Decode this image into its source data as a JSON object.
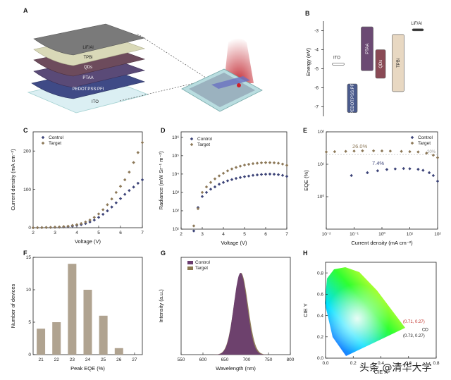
{
  "panels": {
    "a": {
      "label": "A",
      "layers": [
        "LiF/Al",
        "TPBi",
        "QDs",
        "PTAA",
        "PEDOT:PSS:PFI",
        "ITO"
      ]
    },
    "b": {
      "label": "B",
      "ylabel": "Energy (eV)",
      "yticks": [
        "-3",
        "-4",
        "-5",
        "-6",
        "-7"
      ],
      "materials": [
        {
          "name": "ITO",
          "top": -4.7,
          "bottom": -4.7,
          "color": "#ffffff"
        },
        {
          "name": "PEDOT:PSS:PFI",
          "top": -5.8,
          "bottom": -7.3,
          "color": "#4a5a8c"
        },
        {
          "name": "PTAA",
          "top": -2.8,
          "bottom": -5.1,
          "color": "#6b4a73"
        },
        {
          "name": "QDs",
          "top": -4.0,
          "bottom": -5.5,
          "color": "#8a4a55"
        },
        {
          "name": "TPBi",
          "top": -3.2,
          "bottom": -6.2,
          "color": "#e8d8c2"
        },
        {
          "name": "LiF/Al",
          "top": -2.9,
          "bottom": -2.9,
          "color": "#333333"
        }
      ]
    },
    "c": {
      "label": "C"
    },
    "d": {
      "label": "D"
    },
    "e": {
      "label": "E",
      "annotations": {
        "target_peak": "26.0%",
        "control_peak": "7.4%",
        "ref_line": "20%"
      }
    },
    "f": {
      "label": "F"
    },
    "g": {
      "label": "G"
    },
    "h": {
      "label": "H",
      "coord_target": "(0.71, 0.27)",
      "coord_control": "(0.73, 0.27)"
    }
  },
  "colors": {
    "control": "#3d4478",
    "target": "#8c7858"
  },
  "watermark": "头条 @清华大学",
  "chart_data": [
    {
      "panel": "C",
      "type": "scatter",
      "xlabel": "Voltage (V)",
      "ylabel": "Current density (mA cm⁻²)",
      "xlim": [
        2,
        7
      ],
      "ylim": [
        0,
        250
      ],
      "xticks": [
        2,
        3,
        4,
        5,
        6,
        7
      ],
      "yticks": [
        0,
        100,
        200
      ],
      "legend": "top-left",
      "series": [
        {
          "name": "Control",
          "x": [
            2,
            2.2,
            2.4,
            2.6,
            2.8,
            3,
            3.2,
            3.4,
            3.6,
            3.8,
            4,
            4.2,
            4.4,
            4.6,
            4.8,
            5,
            5.2,
            5.4,
            5.6,
            5.8,
            6,
            6.2,
            6.4,
            6.6,
            6.8,
            7
          ],
          "values": [
            0,
            0.2,
            0.4,
            0.6,
            0.8,
            1,
            1.5,
            2,
            3,
            4,
            6,
            8,
            11,
            15,
            20,
            27,
            35,
            44,
            54,
            65,
            76,
            87,
            97,
            106,
            116,
            125
          ]
        },
        {
          "name": "Target",
          "x": [
            2,
            2.2,
            2.4,
            2.6,
            2.8,
            3,
            3.2,
            3.4,
            3.6,
            3.8,
            4,
            4.2,
            4.4,
            4.6,
            4.8,
            5,
            5.2,
            5.4,
            5.6,
            5.8,
            6,
            6.2,
            6.4,
            6.6,
            6.8,
            7
          ],
          "values": [
            0,
            0.2,
            0.4,
            0.7,
            1,
            1.5,
            2,
            3,
            4,
            6,
            8,
            11,
            15,
            20,
            27,
            36,
            47,
            60,
            75,
            92,
            108,
            125,
            145,
            170,
            196,
            222
          ]
        }
      ]
    },
    {
      "panel": "D",
      "type": "scatter",
      "xlabel": "Voltage (V)",
      "ylabel": "Radiance (mW Sr⁻¹ m⁻²)",
      "xlim": [
        2,
        7
      ],
      "ylim": [
        1,
        1000000
      ],
      "scale": "log",
      "xticks": [
        2,
        3,
        4,
        5,
        6,
        7
      ],
      "yticks": [
        "10¹",
        "10²",
        "10³",
        "10⁴",
        "10⁵",
        "10⁶"
      ],
      "legend": "top-left",
      "series": [
        {
          "name": "Control",
          "x": [
            2.6,
            2.8,
            3,
            3.2,
            3.4,
            3.6,
            3.8,
            4,
            4.2,
            4.4,
            4.6,
            4.8,
            5,
            5.2,
            5.4,
            5.6,
            5.8,
            6,
            6.2,
            6.4,
            6.6,
            6.8,
            7
          ],
          "values": [
            8,
            150,
            600,
            1000,
            1500,
            2000,
            2800,
            3500,
            4300,
            5000,
            5800,
            6500,
            7200,
            7800,
            8500,
            9000,
            9500,
            9800,
            10000,
            9800,
            9300,
            8500,
            7500
          ]
        },
        {
          "name": "Target",
          "x": [
            2.6,
            2.8,
            3,
            3.2,
            3.4,
            3.6,
            3.8,
            4,
            4.2,
            4.4,
            4.6,
            4.8,
            5,
            5.2,
            5.4,
            5.6,
            5.8,
            6,
            6.2,
            6.4,
            6.6,
            6.8,
            7
          ],
          "values": [
            15,
            130,
            1000,
            2000,
            3500,
            5500,
            8000,
            11000,
            15000,
            19000,
            23000,
            27000,
            31000,
            34000,
            37000,
            39000,
            41000,
            42000,
            42000,
            41000,
            39000,
            35000,
            30000
          ]
        }
      ]
    },
    {
      "panel": "E",
      "type": "scatter",
      "xlabel": "Current density (mA cm⁻²)",
      "ylabel": "EQE (%)",
      "scale": "log",
      "xlim": [
        0.01,
        100
      ],
      "ylim": [
        0.1,
        100
      ],
      "xticks": [
        "10⁻²",
        "10⁻¹",
        "10⁰",
        "10¹",
        "10²"
      ],
      "yticks": [
        "10⁰",
        "10¹",
        "10²"
      ],
      "legend": "top-right",
      "series": [
        {
          "name": "Control",
          "x": [
            0.08,
            0.3,
            0.7,
            1.5,
            3,
            6,
            10,
            20,
            30,
            50,
            70,
            100
          ],
          "values": [
            4.5,
            5.5,
            6.3,
            6.9,
            7.2,
            7.4,
            7.3,
            7.0,
            6.5,
            5.5,
            4.5,
            3.0
          ]
        },
        {
          "name": "Target",
          "x": [
            0.01,
            0.02,
            0.05,
            0.1,
            0.2,
            0.5,
            1,
            2,
            5,
            10,
            20,
            40,
            70,
            100
          ],
          "values": [
            24,
            24.5,
            25,
            25.5,
            26,
            26,
            25.8,
            25.5,
            25,
            24.5,
            24,
            22,
            19,
            16
          ]
        }
      ]
    },
    {
      "panel": "F",
      "type": "bar",
      "xlabel": "Peak EQE (%)",
      "ylabel": "Number of devices",
      "categories": [
        "21",
        "22",
        "23",
        "24",
        "25",
        "26",
        "27"
      ],
      "values": [
        4,
        5,
        14,
        10,
        6,
        1,
        0
      ],
      "ylim": [
        0,
        15
      ],
      "yticks": [
        0,
        5,
        10,
        15
      ],
      "color": "#b0a390"
    },
    {
      "panel": "G",
      "type": "area",
      "xlabel": "Wavelength (nm)",
      "ylabel": "Intensity (a.u.)",
      "xlim": [
        550,
        800
      ],
      "xticks": [
        550,
        600,
        650,
        700,
        750,
        800
      ],
      "legend": "top-left",
      "series": [
        {
          "name": "Control",
          "peak": 686,
          "fwhm": 36,
          "color": "#6b3d6f"
        },
        {
          "name": "Target",
          "peak": 687,
          "fwhm": 38,
          "color": "#8c7a52"
        }
      ]
    },
    {
      "panel": "H",
      "type": "scatter",
      "xlabel": "CIE X",
      "ylabel": "CIE Y",
      "xlim": [
        0,
        0.8
      ],
      "ylim": [
        0,
        0.9
      ],
      "xticks": [
        "0.0",
        "0.2",
        "0.4",
        "0.6",
        "0.8"
      ],
      "yticks": [
        "0.0",
        "0.2",
        "0.4",
        "0.6",
        "0.8"
      ],
      "series": [
        {
          "x": [
            0.71,
            0.73
          ],
          "values": [
            0.27,
            0.27
          ]
        }
      ]
    }
  ]
}
